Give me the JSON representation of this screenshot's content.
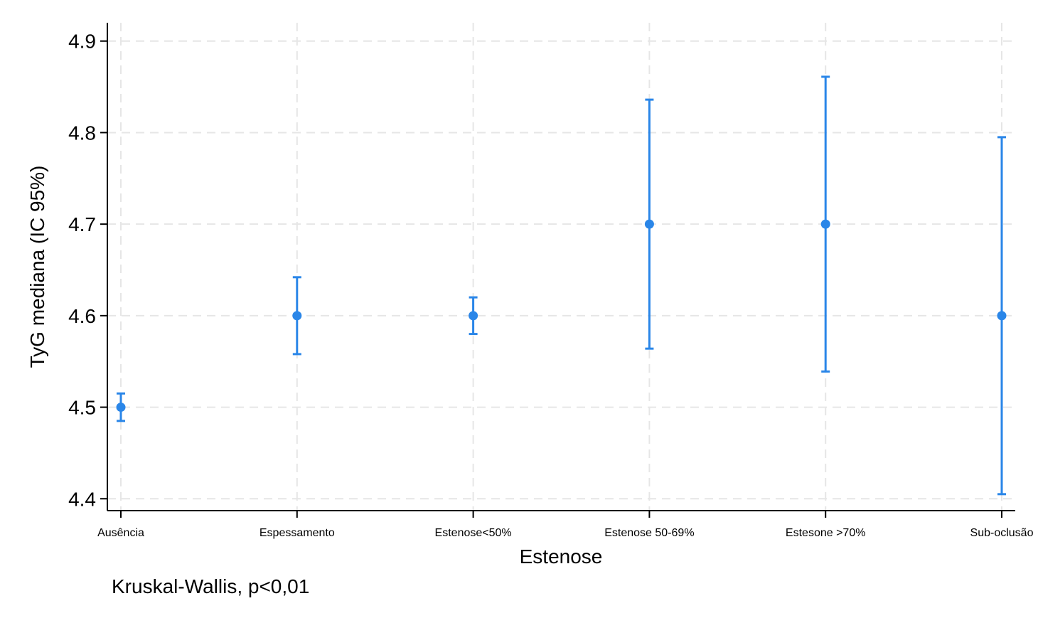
{
  "chart_data": {
    "type": "scatter",
    "subtype": "point-with-error-bars",
    "categories": [
      "Ausência",
      "Espessamento",
      "Estenose<50%",
      "Estenose 50-69%",
      "Estesone >70%",
      "Sub-oclusão"
    ],
    "series": [
      {
        "values": [
          4.5,
          4.6,
          4.6,
          4.7,
          4.7,
          4.6
        ],
        "ci_lower": [
          4.485,
          4.558,
          4.58,
          4.564,
          4.539,
          4.405
        ],
        "ci_upper": [
          4.515,
          4.642,
          4.62,
          4.836,
          4.861,
          4.795
        ],
        "color": "#2a86e8"
      }
    ],
    "xlabel": "Estenose",
    "ylabel": "TyG mediana (IC 95%)",
    "ylim": [
      4.387,
      4.92
    ],
    "yticks": [
      4.4,
      4.5,
      4.6,
      4.7,
      4.8,
      4.9
    ],
    "ytick_labels": [
      "4.4",
      "4.5",
      "4.6",
      "4.7",
      "4.8",
      "4.9"
    ],
    "grid": true,
    "grid_style": "dashed",
    "note": "Kruskal-Wallis, p<0,01"
  }
}
